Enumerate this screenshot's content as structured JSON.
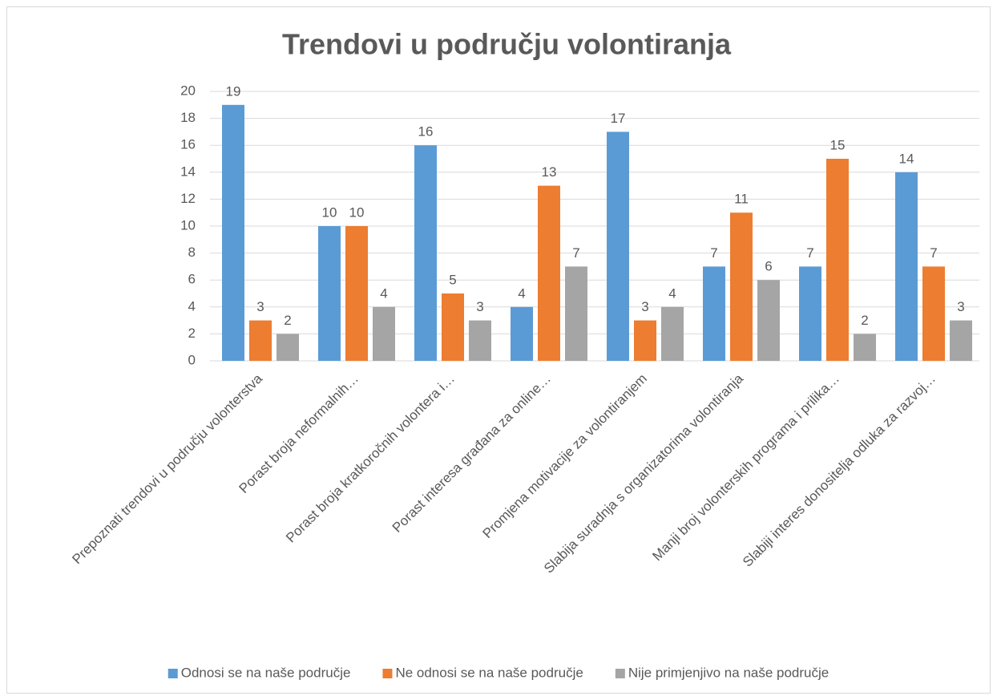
{
  "chart_data": {
    "type": "bar",
    "title": "Trendovi u području volontiranja",
    "categories": [
      "Prepoznati trendovi u području volonterstva",
      "Porast broja neformalnih…",
      "Porast broja kratkoročnih volontera i…",
      "Porast interesa građana za online…",
      "Promjena motivacije za volontiranjem",
      "Slabija suradnja s organizatorima volontiranja",
      "Manji broj volonterskih programa i prilika…",
      "Slabiji interes donositelja odluka za razvoj…"
    ],
    "series": [
      {
        "name": "Odnosi se na naše područje",
        "color": "#5b9bd5",
        "values": [
          19,
          10,
          16,
          4,
          17,
          7,
          7,
          14
        ]
      },
      {
        "name": "Ne odnosi se na naše područje",
        "color": "#ed7d31",
        "values": [
          3,
          10,
          5,
          13,
          3,
          11,
          15,
          7
        ]
      },
      {
        "name": "Nije primjenjivo na naše područje",
        "color": "#a5a5a5",
        "values": [
          2,
          4,
          3,
          7,
          4,
          6,
          2,
          3
        ]
      }
    ],
    "ylim": [
      0,
      20
    ],
    "yticks": [
      0,
      2,
      4,
      6,
      8,
      10,
      12,
      14,
      16,
      18,
      20
    ],
    "grid": true,
    "legend": "bottom"
  }
}
